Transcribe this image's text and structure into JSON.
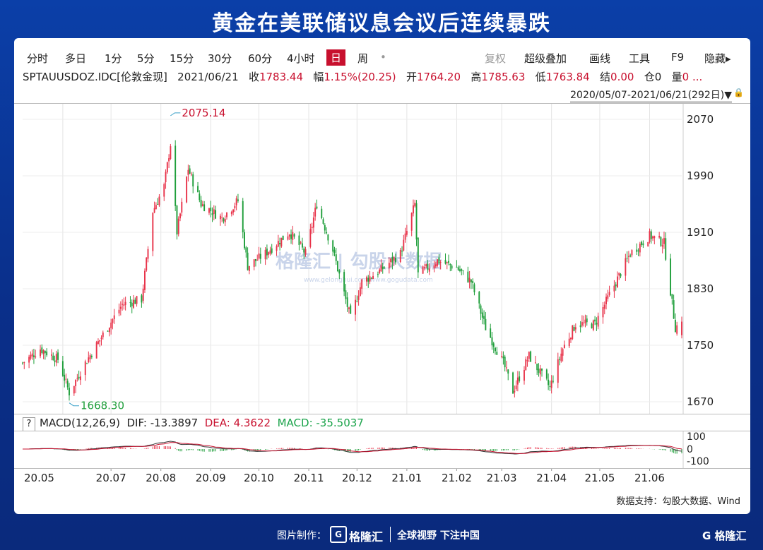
{
  "title": "黄金在美联储议息会议后连续暴跌",
  "toolbar": {
    "left": [
      "分时",
      "多日",
      "1分",
      "5分",
      "15分",
      "30分",
      "60分",
      "4小时"
    ],
    "active": "日",
    "week": "周",
    "dot": "•",
    "right_gray": "复权",
    "right": [
      "超级叠加",
      "画线",
      "工具",
      "F9",
      "隐藏▸"
    ]
  },
  "info": {
    "symbol": "SPTAUUSDOZ.IDC[伦敦金现]",
    "date": "2021/06/21",
    "close_label": "收",
    "close": "1783.44",
    "change_label": "幅",
    "change": "1.15%(20.25)",
    "open_label": "开",
    "open": "1764.20",
    "high_label": "高",
    "high": "1785.63",
    "low_label": "低",
    "low": "1763.84",
    "settle_label": "结",
    "settle": "0.00",
    "hold_label": "仓",
    "hold": "0",
    "vol_label": "量",
    "vol": "0 ..."
  },
  "range": "2020/05/07-2021/06/21(292日)▼",
  "macd_legend": {
    "q": "?",
    "name": "MACD(12,26,9)",
    "dif": "DIF: -13.3897",
    "dea": "DEA: 4.3622",
    "macd": "MACD: -35.5037"
  },
  "watermark": "格隆汇 | 勾股大数据",
  "watermark_sub": "www.gelonghui.com   www.gogudata.com",
  "source": "数据支持：勾股大数据、Wind",
  "footer": {
    "made": "图片制作：",
    "logo_mark": "G",
    "logo": "格隆汇",
    "slogan": "全球视野 下注中国",
    "wm": "G 格隆汇"
  },
  "colors": {
    "up": "#e8334a",
    "down": "#1e9e3a",
    "brand_bg": "#0b3fa8"
  },
  "chart_data": {
    "type": "candlestick",
    "y_ticks": [
      1670,
      1750,
      1830,
      1910,
      1990,
      2070
    ],
    "ylim": [
      1652,
      2092
    ],
    "x_ticks": [
      "20.05",
      "20.07",
      "20.08",
      "20.09",
      "20.10",
      "20.11",
      "20.12",
      "21.01",
      "21.02",
      "21.03",
      "21.04",
      "21.05",
      "21.06"
    ],
    "annotations": [
      {
        "label": "2075.14",
        "value": 2075.14,
        "date": "2020-08-07"
      },
      {
        "label": "1668.30",
        "value": 1668.3,
        "date": "2020-06-05"
      }
    ],
    "macd_ticks": [
      "100",
      "0",
      "-100"
    ],
    "close_path": [
      {
        "d": "2020-05-07",
        "c": 1725
      },
      {
        "d": "2020-05-18",
        "c": 1745
      },
      {
        "d": "2020-05-29",
        "c": 1730
      },
      {
        "d": "2020-06-05",
        "c": 1683
      },
      {
        "d": "2020-06-15",
        "c": 1725
      },
      {
        "d": "2020-06-26",
        "c": 1765
      },
      {
        "d": "2020-07-08",
        "c": 1808
      },
      {
        "d": "2020-07-20",
        "c": 1815
      },
      {
        "d": "2020-07-27",
        "c": 1940
      },
      {
        "d": "2020-08-03",
        "c": 1975
      },
      {
        "d": "2020-08-07",
        "c": 2035
      },
      {
        "d": "2020-08-11",
        "c": 1910
      },
      {
        "d": "2020-08-18",
        "c": 2000
      },
      {
        "d": "2020-08-26",
        "c": 1950
      },
      {
        "d": "2020-09-08",
        "c": 1930
      },
      {
        "d": "2020-09-18",
        "c": 1955
      },
      {
        "d": "2020-09-24",
        "c": 1862
      },
      {
        "d": "2020-10-05",
        "c": 1880
      },
      {
        "d": "2020-10-20",
        "c": 1910
      },
      {
        "d": "2020-10-30",
        "c": 1880
      },
      {
        "d": "2020-11-06",
        "c": 1950
      },
      {
        "d": "2020-11-16",
        "c": 1885
      },
      {
        "d": "2020-11-27",
        "c": 1788
      },
      {
        "d": "2020-12-04",
        "c": 1840
      },
      {
        "d": "2020-12-15",
        "c": 1855
      },
      {
        "d": "2020-12-28",
        "c": 1880
      },
      {
        "d": "2021-01-06",
        "c": 1950
      },
      {
        "d": "2021-01-08",
        "c": 1850
      },
      {
        "d": "2021-01-20",
        "c": 1870
      },
      {
        "d": "2021-02-01",
        "c": 1860
      },
      {
        "d": "2021-02-10",
        "c": 1840
      },
      {
        "d": "2021-02-19",
        "c": 1775
      },
      {
        "d": "2021-03-02",
        "c": 1725
      },
      {
        "d": "2021-03-08",
        "c": 1685
      },
      {
        "d": "2021-03-18",
        "c": 1735
      },
      {
        "d": "2021-03-31",
        "c": 1690
      },
      {
        "d": "2021-04-08",
        "c": 1745
      },
      {
        "d": "2021-04-16",
        "c": 1780
      },
      {
        "d": "2021-04-28",
        "c": 1780
      },
      {
        "d": "2021-05-10",
        "c": 1835
      },
      {
        "d": "2021-05-20",
        "c": 1880
      },
      {
        "d": "2021-06-01",
        "c": 1905
      },
      {
        "d": "2021-06-10",
        "c": 1895
      },
      {
        "d": "2021-06-17",
        "c": 1775
      },
      {
        "d": "2021-06-21",
        "c": 1783.44
      }
    ]
  }
}
